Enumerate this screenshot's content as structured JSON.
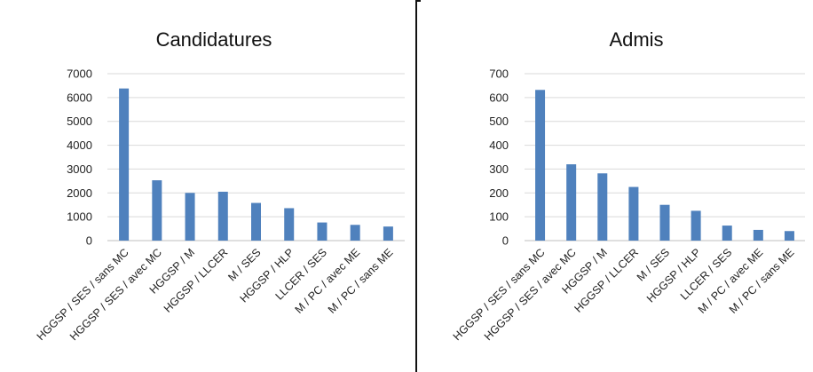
{
  "chart_data": [
    {
      "type": "bar",
      "title": "Candidatures",
      "categories": [
        "HGGSP / SES / sans MC",
        "HGGSP / SES / avec MC",
        "HGGSP / M",
        "HGGSP / LLCER",
        "M / SES",
        "HGGSP / HLP",
        "LLCER / SES",
        "M / PC / avec ME",
        "M / PC / sans ME"
      ],
      "values": [
        6380,
        2530,
        2000,
        2050,
        1580,
        1360,
        760,
        660,
        590
      ],
      "ylim": [
        0,
        7000
      ],
      "yticks": [
        "0",
        "1000",
        "2000",
        "3000",
        "4000",
        "5000",
        "6000",
        "7000"
      ],
      "xlabel": "",
      "ylabel": "",
      "grid": true,
      "color": "#4f81bd"
    },
    {
      "type": "bar",
      "title": "Admis",
      "categories": [
        "HGGSP / SES / sans MC",
        "HGGSP / SES / avec MC",
        "HGGSP / M",
        "HGGSP / LLCER",
        "M / SES",
        "HGGSP / HLP",
        "LLCER / SES",
        "M / PC / avec ME",
        "M / PC / sans ME"
      ],
      "values": [
        632,
        320,
        282,
        225,
        150,
        125,
        63,
        45,
        40
      ],
      "ylim": [
        0,
        700
      ],
      "yticks": [
        "0",
        "100",
        "200",
        "300",
        "400",
        "500",
        "600",
        "700"
      ],
      "xlabel": "",
      "ylabel": "",
      "grid": true,
      "color": "#4f81bd"
    }
  ]
}
